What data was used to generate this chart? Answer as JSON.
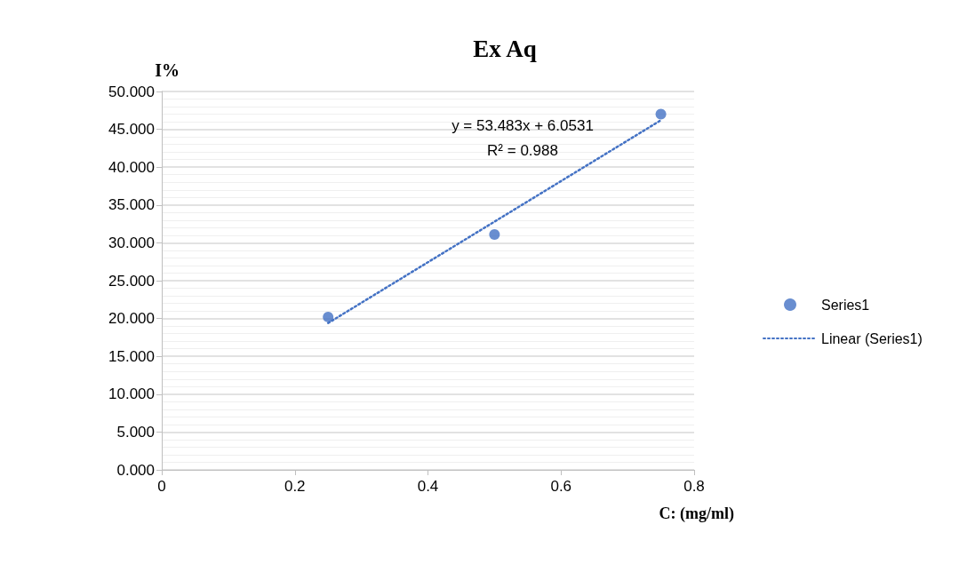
{
  "chart_data": {
    "type": "scatter",
    "title": "Ex Aq",
    "xlabel": "C: (mg/ml)",
    "ylabel": "I%",
    "x": [
      0.25,
      0.5,
      0.75
    ],
    "series": [
      {
        "name": "Series1",
        "color": "#4472c4",
        "values": [
          20.2,
          31.1,
          47.0
        ],
        "marker": "circle"
      },
      {
        "name": "Linear (Series1)",
        "type": "line",
        "color": "#4472c4",
        "x": [
          0.25,
          0.75
        ],
        "values": [
          19.4,
          46.2
        ],
        "line_style": "dotted",
        "marker": "none"
      }
    ],
    "xlim": [
      0,
      0.8
    ],
    "xticks": [
      0,
      0.2,
      0.4,
      0.6,
      0.8
    ],
    "ylim": [
      0,
      50
    ],
    "yticks": [
      {
        "value": 0,
        "label": "0.000"
      },
      {
        "value": 5,
        "label": "5.000"
      },
      {
        "value": 10,
        "label": "10.000"
      },
      {
        "value": 15,
        "label": "15.000"
      },
      {
        "value": 20,
        "label": "20.000"
      },
      {
        "value": 25,
        "label": "25.000"
      },
      {
        "value": 30,
        "label": "30.000"
      },
      {
        "value": 35,
        "label": "35.000"
      },
      {
        "value": 40,
        "label": "40.000"
      },
      {
        "value": 45,
        "label": "45.000"
      },
      {
        "value": 50,
        "label": "50.000"
      }
    ],
    "annotations": [
      "y = 53.483x + 6.0531",
      "R² = 0.988"
    ],
    "grid": "y",
    "legend": "right"
  }
}
